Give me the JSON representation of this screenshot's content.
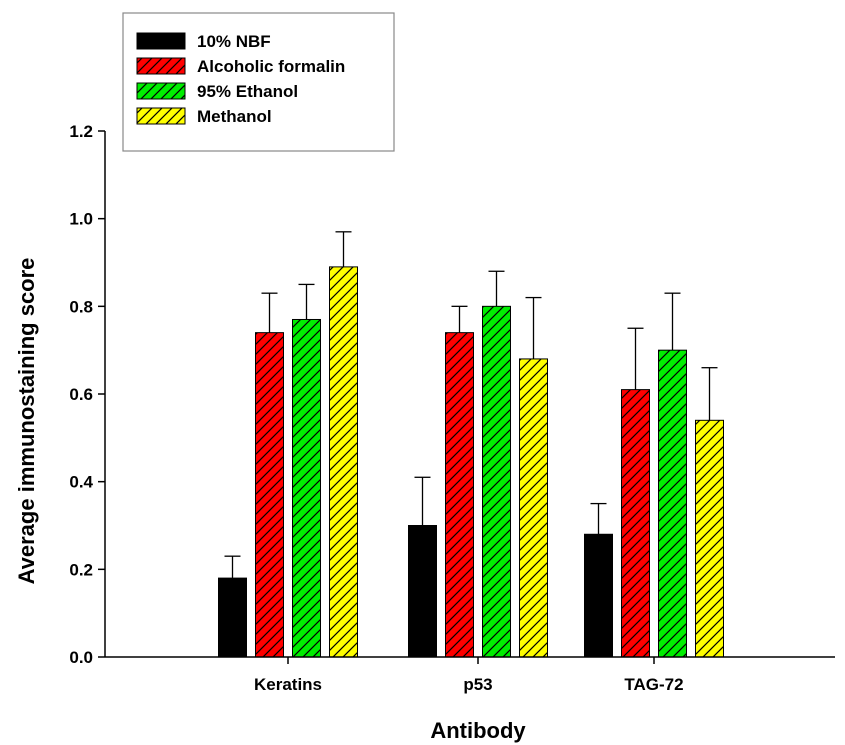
{
  "chart_data": {
    "type": "bar",
    "xlabel": "Antibody",
    "ylabel": "Average immunostaining score",
    "ylim": [
      0,
      1.2
    ],
    "yticks": [
      "0.0",
      "0.2",
      "0.4",
      "0.6",
      "0.8",
      "1.0",
      "1.2"
    ],
    "categories": [
      "Keratins",
      "p53",
      "TAG-72"
    ],
    "series": [
      {
        "name": "10% NBF",
        "values": [
          0.18,
          0.3,
          0.28
        ],
        "errors": [
          0.05,
          0.11,
          0.07
        ],
        "color": "#000000",
        "hatch": false
      },
      {
        "name": "Alcoholic formalin",
        "values": [
          0.74,
          0.74,
          0.61
        ],
        "errors": [
          0.09,
          0.06,
          0.14
        ],
        "color": "#ff0000",
        "hatch": true
      },
      {
        "name": "95% Ethanol",
        "values": [
          0.77,
          0.8,
          0.7
        ],
        "errors": [
          0.08,
          0.08,
          0.13
        ],
        "color": "#00ee00",
        "hatch": true
      },
      {
        "name": "Methanol",
        "values": [
          0.89,
          0.68,
          0.54
        ],
        "errors": [
          0.08,
          0.14,
          0.12
        ],
        "color": "#ffff00",
        "hatch": true
      }
    ],
    "grid": false,
    "legend_position": "top-left",
    "error_bars": "upper"
  }
}
